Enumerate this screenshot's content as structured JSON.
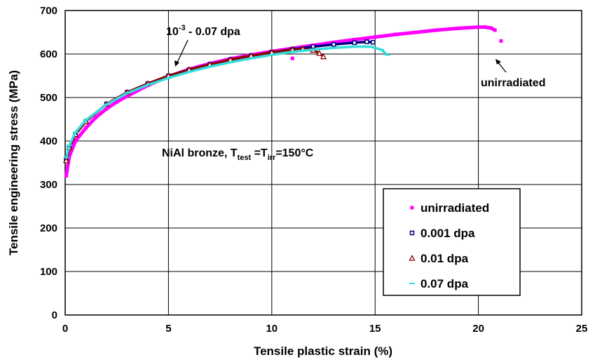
{
  "chart_data": {
    "type": "scatter",
    "xlabel": "Tensile plastic strain (%)",
    "ylabel": "Tensile engineering stress (MPa)",
    "xlim": [
      0,
      25
    ],
    "ylim": [
      0,
      700
    ],
    "xticks": [
      0,
      5,
      10,
      15,
      20,
      25
    ],
    "yticks": [
      0,
      100,
      200,
      300,
      400,
      500,
      600,
      700
    ],
    "grid": true,
    "legend_position": "bottom-right",
    "annotations": {
      "dose_range": {
        "base": "10",
        "exp": "-3",
        "rest": " - 0.07 dpa"
      },
      "unirradiated": "unirradiated",
      "material": {
        "prefix": "NiAl bronze, T",
        "sub1": "test",
        "mid": " =T",
        "sub2": "irr",
        "suffix": "=150°C"
      }
    },
    "series": [
      {
        "name": "unirradiated",
        "marker": "square-filled",
        "color": "#ff00ff",
        "x": [
          0.05,
          0.2,
          0.5,
          1.0,
          1.5,
          2.0,
          2.5,
          3,
          4,
          5,
          6,
          7,
          8,
          9,
          10,
          11,
          12,
          13,
          14,
          15,
          16,
          17,
          18,
          19,
          20,
          20.3,
          20.6,
          20.8,
          11.0,
          21.1
        ],
        "y": [
          320,
          365,
          400,
          430,
          455,
          474,
          490,
          503,
          528,
          548,
          565,
          578,
          589,
          598,
          606,
          613,
          620,
          627,
          633,
          639,
          645,
          650,
          655,
          659,
          662,
          662,
          660,
          655,
          590,
          630
        ]
      },
      {
        "name": "0.001 dpa",
        "marker": "square-open",
        "color": "#000080",
        "x": [
          0.05,
          0.2,
          0.5,
          1.0,
          2.0,
          3,
          4,
          5,
          6,
          7,
          8,
          9,
          10,
          11,
          12,
          13,
          14,
          14.6,
          14.9
        ],
        "y": [
          355,
          385,
          415,
          445,
          485,
          512,
          532,
          550,
          564,
          576,
          587,
          596,
          604,
          611,
          617,
          622,
          626,
          628,
          627
        ]
      },
      {
        "name": "0.01 dpa",
        "marker": "triangle-open",
        "color": "#8b0000",
        "x": [
          0.05,
          0.2,
          0.5,
          1.0,
          2.0,
          3,
          4,
          5,
          6,
          7,
          8,
          9,
          10,
          11,
          11.5,
          12.0,
          12.3,
          12.5
        ],
        "y": [
          355,
          385,
          415,
          445,
          485,
          512,
          532,
          550,
          564,
          576,
          587,
          596,
          604,
          610,
          612,
          609,
          602,
          594
        ]
      },
      {
        "name": "0.07 dpa",
        "marker": "dash",
        "color": "#33dddd",
        "x": [
          0.05,
          0.2,
          0.5,
          1.0,
          2.0,
          3,
          4,
          5,
          6,
          7,
          8,
          9,
          10,
          11,
          12,
          13,
          14,
          14.8,
          15.3,
          15.6
        ],
        "y": [
          362,
          390,
          420,
          448,
          484,
          510,
          529,
          545,
          559,
          571,
          581,
          590,
          598,
          605,
          610,
          614,
          617,
          617,
          610,
          598
        ]
      }
    ]
  }
}
